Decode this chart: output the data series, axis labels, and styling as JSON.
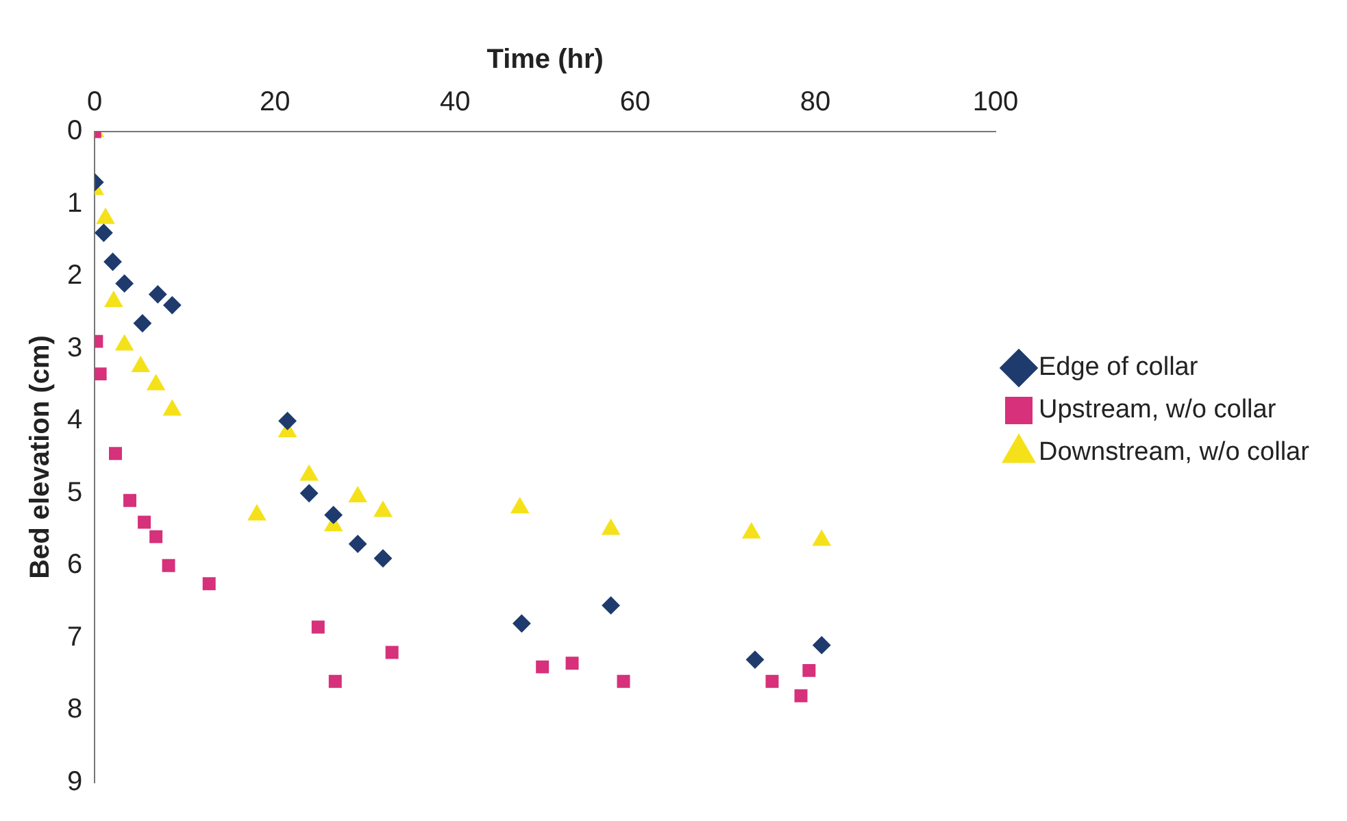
{
  "chart_data": {
    "type": "scatter",
    "xlabel": "Time (hr)",
    "ylabel": "Bed elevation (cm)",
    "xlim": [
      0,
      100
    ],
    "xticks": [
      0,
      20,
      40,
      60,
      80,
      100
    ],
    "ylim": [
      9,
      0
    ],
    "yticks": [
      0,
      1,
      2,
      3,
      4,
      5,
      6,
      7,
      8,
      9
    ],
    "grid": false,
    "legend": "right",
    "series": [
      {
        "name": "Edge of collar",
        "color": "#1f3b6e",
        "marker": "diamond",
        "x": [
          0,
          1,
          2,
          3.3,
          5.3,
          7,
          8.6,
          21.4,
          23.8,
          26.5,
          29.2,
          32,
          47.4,
          57.3,
          73.3,
          80.7
        ],
        "values": [
          0.7,
          1.4,
          1.8,
          2.1,
          2.65,
          2.25,
          2.4,
          4.0,
          5.0,
          5.3,
          5.7,
          5.9,
          6.8,
          6.55,
          7.3,
          7.1
        ]
      },
      {
        "name": "Upstream, w/o collar",
        "color": "#d6317a",
        "marker": "square",
        "x": [
          0,
          0.2,
          0.6,
          2.3,
          3.9,
          5.5,
          6.8,
          8.2,
          12.7,
          24.8,
          26.7,
          33,
          49.7,
          53,
          58.7,
          75.2,
          79.3,
          78.4
        ],
        "values": [
          0,
          2.9,
          3.35,
          4.45,
          5.1,
          5.4,
          5.6,
          6.0,
          6.25,
          6.85,
          7.6,
          7.2,
          7.4,
          7.35,
          7.6,
          7.6,
          7.45,
          7.8
        ]
      },
      {
        "name": "Downstream, w/o collar",
        "color": "#f5e11a",
        "marker": "triangle",
        "x": [
          0,
          0,
          1.2,
          2.1,
          3.3,
          5.1,
          6.8,
          8.6,
          18,
          21.4,
          23.8,
          26.5,
          29.2,
          32,
          47.2,
          57.3,
          72.9,
          80.7
        ],
        "values": [
          0,
          0.8,
          1.2,
          2.35,
          2.95,
          3.25,
          3.5,
          3.85,
          5.3,
          4.15,
          4.75,
          5.45,
          5.05,
          5.25,
          5.2,
          5.5,
          5.55,
          5.65
        ]
      }
    ]
  }
}
